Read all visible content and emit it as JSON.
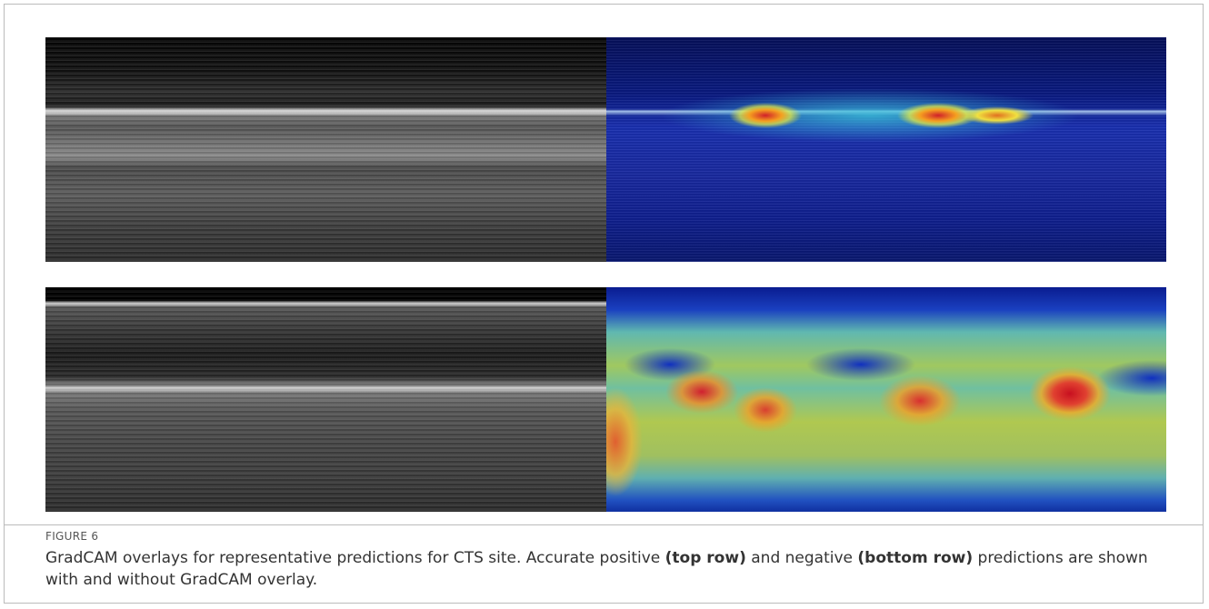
{
  "figure": {
    "label": "FIGURE 6",
    "caption": [
      "GradCAM overlays for representative predictions for CTS site. Accurate positive ",
      "(top row)",
      " and negative ",
      "(bottom row)",
      " predictions are shown with and without GradCAM overlay."
    ]
  }
}
